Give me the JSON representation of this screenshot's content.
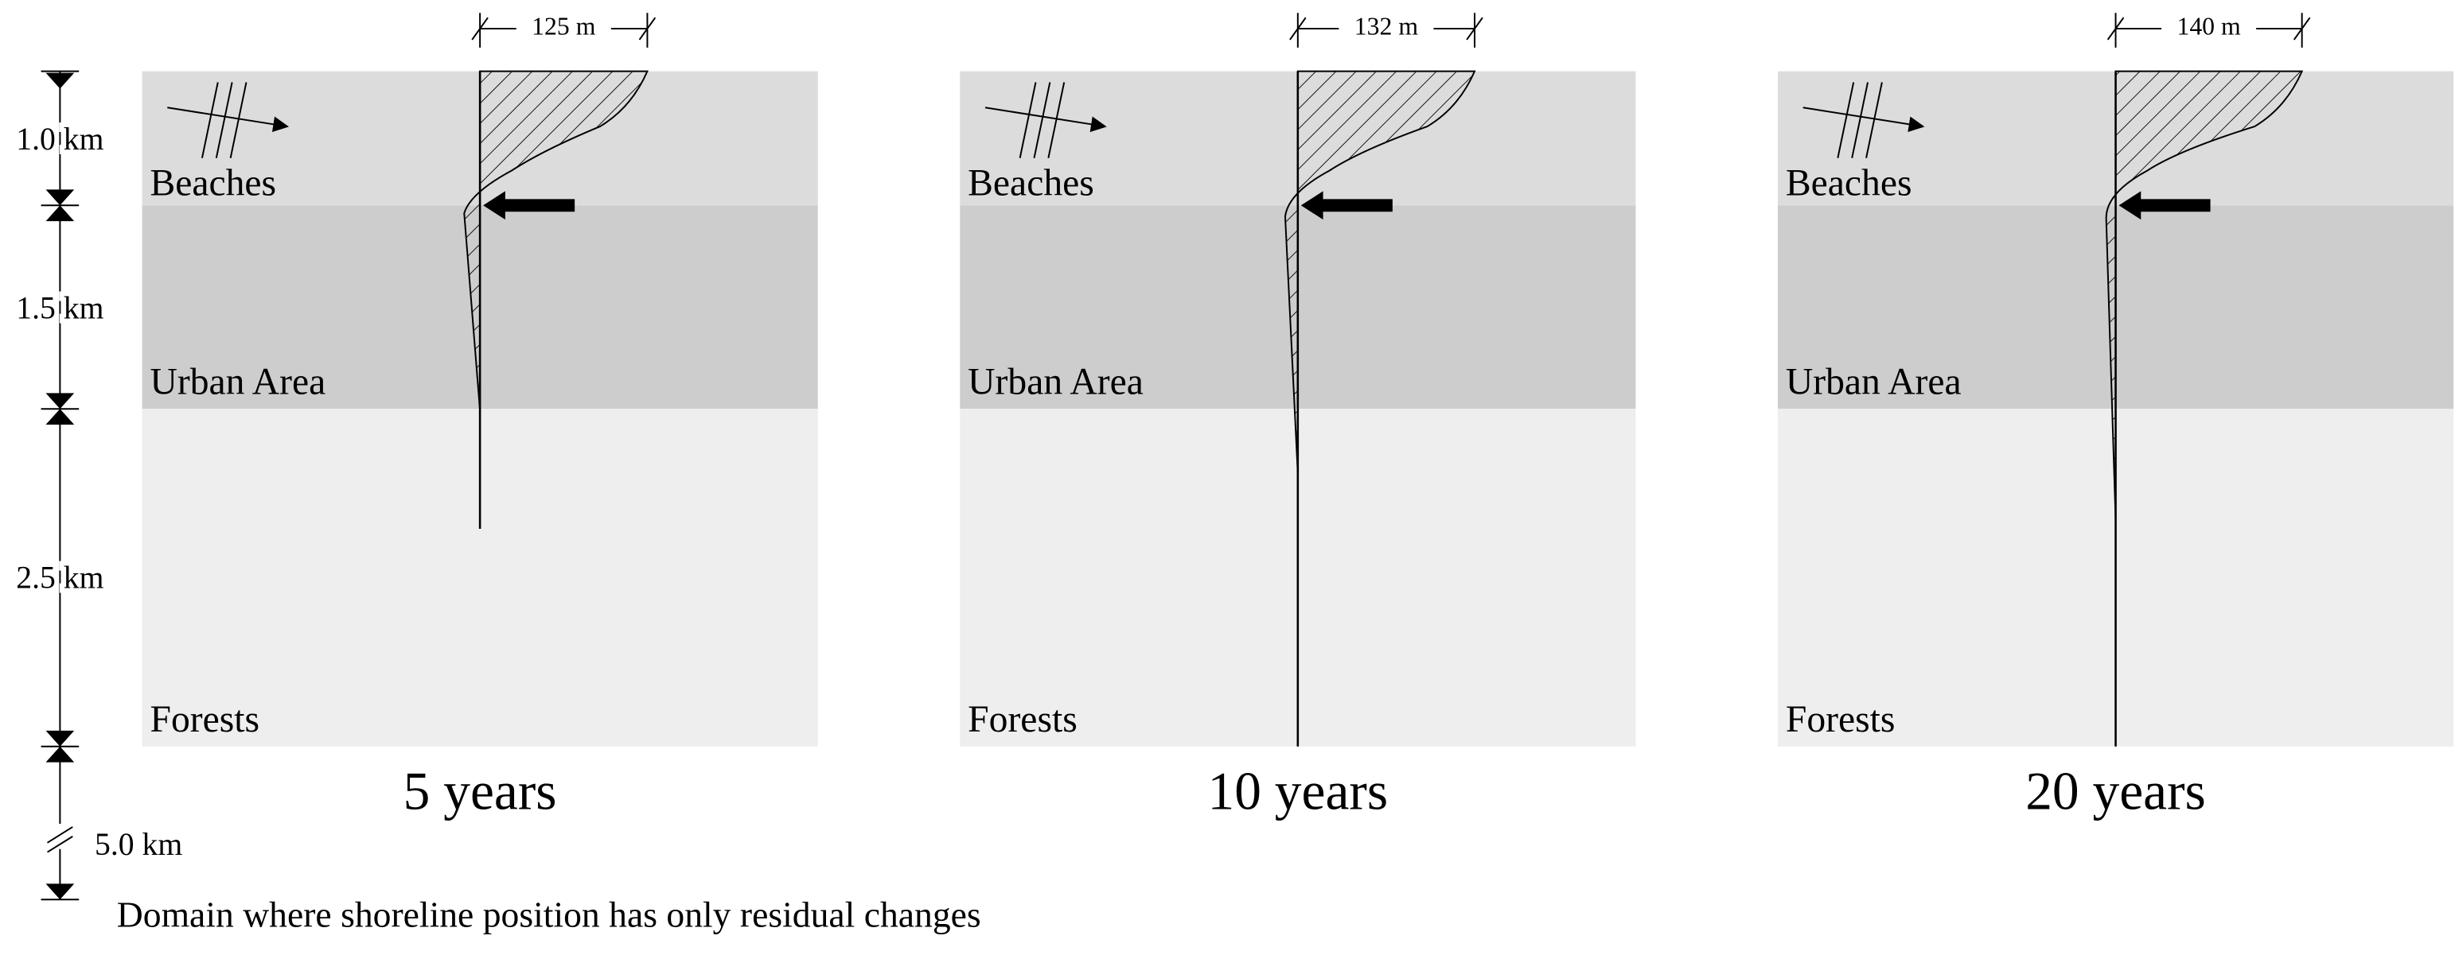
{
  "scale": {
    "segments": [
      "1.0 km",
      "1.5 km",
      "2.5 km",
      "5.0 km"
    ]
  },
  "panels": [
    {
      "title": "5 years",
      "width_label": "125 m",
      "zones": [
        "Beaches",
        "Urban Area",
        "Forests"
      ]
    },
    {
      "title": "10 years",
      "width_label": "132 m",
      "zones": [
        "Beaches",
        "Urban Area",
        "Forests"
      ]
    },
    {
      "title": "20 years",
      "width_label": "140 m",
      "zones": [
        "Beaches",
        "Urban Area",
        "Forests"
      ]
    }
  ],
  "footnote": "Domain where shoreline position has only residual changes"
}
